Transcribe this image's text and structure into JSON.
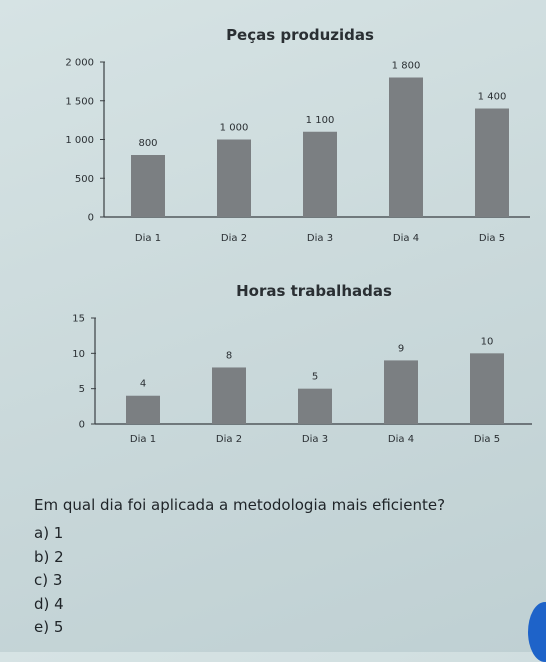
{
  "chart_data": [
    {
      "type": "bar",
      "title": "Peças produzidas",
      "categories": [
        "Dia 1",
        "Dia 2",
        "Dia 3",
        "Dia 4",
        "Dia 5"
      ],
      "values": [
        800,
        1000,
        1100,
        1800,
        1400
      ],
      "value_labels": [
        "800",
        "1 000",
        "1 100",
        "1 800",
        "1 400"
      ],
      "yticks": [
        0,
        500,
        1000,
        1500,
        2000
      ],
      "ytick_labels": [
        "0",
        "500",
        "1 000",
        "1 500",
        "2 000"
      ],
      "ylim": [
        0,
        2000
      ],
      "grid": false,
      "bar_color": "#7b7f82"
    },
    {
      "type": "bar",
      "title": "Horas trabalhadas",
      "categories": [
        "Dia 1",
        "Dia 2",
        "Dia 3",
        "Dia 4",
        "Dia 5"
      ],
      "values": [
        4,
        8,
        5,
        9,
        10
      ],
      "value_labels": [
        "4",
        "8",
        "5",
        "9",
        "10"
      ],
      "yticks": [
        0,
        5,
        10,
        15
      ],
      "ytick_labels": [
        "0",
        "5",
        "10",
        "15"
      ],
      "ylim": [
        0,
        15
      ],
      "grid": false,
      "bar_color": "#7b7f82"
    }
  ],
  "question": {
    "text": "Em qual dia foi aplicada a metodologia mais eficiente?",
    "options": [
      "a) 1",
      "b) 2",
      "c) 3",
      "d) 4",
      "e) 5"
    ]
  },
  "colors": {
    "accent_corner": "#1e63c9",
    "axis": "#3a3f43"
  }
}
